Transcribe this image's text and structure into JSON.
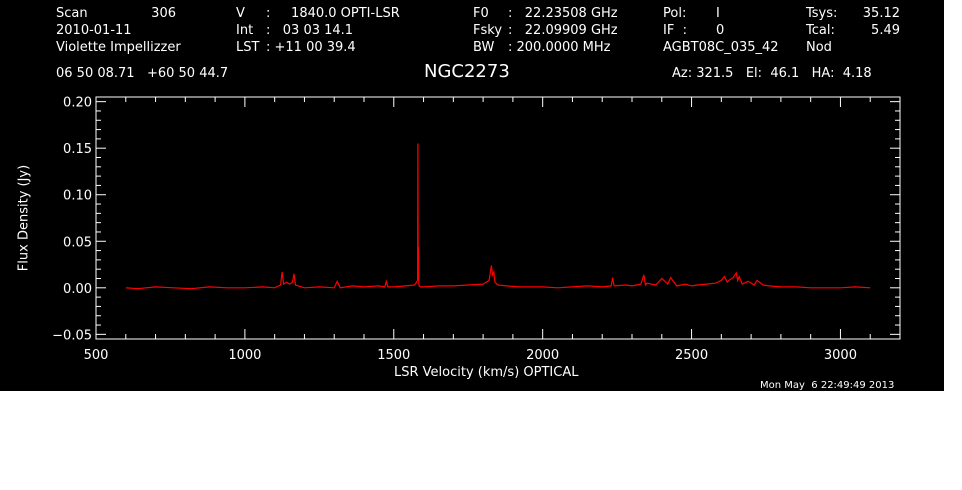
{
  "header": {
    "col1": [
      "Scan",
      "2010-01-11",
      "Violette Impellizzer"
    ],
    "col1_value": "306",
    "col2_label": [
      "V",
      "Int",
      "LST"
    ],
    "col2_value": [
      ":     1840.0 OPTI-LSR",
      ":   03 03 14.1",
      ": +11 00 39.4"
    ],
    "col3_label": [
      "F0",
      "Fsky",
      "BW"
    ],
    "col3_value": [
      ":   22.23508 GHz",
      ":   22.09909 GHz",
      ": 200.0000 MHz"
    ],
    "col4_label": [
      "Pol:",
      "IF  :",
      "AGBT08C_035_42"
    ],
    "col4_value": [
      "I",
      "0",
      ""
    ],
    "col5_label": [
      "Tsys:",
      "Tcal:",
      "Nod"
    ],
    "col5_value": [
      "35.12",
      "5.49",
      ""
    ],
    "coords": "06 50 08.71   +60 50 44.7",
    "source": "NGC2273",
    "azelha": "Az: 321.5   El:  46.1   HA:  4.18"
  },
  "footer": {
    "timestamp": "Mon May  6 22:49:49 2013"
  },
  "colors": {
    "background": "#000000",
    "axes": "#ffffff",
    "trace": "#ff0000"
  },
  "chart_data": {
    "type": "line",
    "xlabel": "LSR Velocity (km/s) OPTICAL",
    "ylabel": "Flux Density (Jy)",
    "xlim": [
      500,
      3200
    ],
    "ylim": [
      -0.055,
      0.205
    ],
    "xticks": [
      500,
      1000,
      1500,
      2000,
      2500,
      3000
    ],
    "xtick_labels": [
      "500",
      "1000",
      "1500",
      "2000",
      "2500",
      "3000"
    ],
    "yticks": [
      -0.05,
      0.0,
      0.05,
      0.1,
      0.15,
      0.2
    ],
    "ytick_labels": [
      "−0.05",
      "0.00",
      "0.05",
      "0.10",
      "0.15",
      "0.20"
    ],
    "series": [
      {
        "x": [
          600,
          640,
          700,
          760,
          820,
          880,
          940,
          1000,
          1060,
          1100,
          1120,
          1125,
          1130,
          1140,
          1150,
          1160,
          1165,
          1170,
          1180,
          1200,
          1250,
          1300,
          1310,
          1320,
          1360,
          1400,
          1450,
          1470,
          1475,
          1480,
          1500,
          1540,
          1570,
          1580,
          1581,
          1582,
          1583,
          1584,
          1585,
          1590,
          1600,
          1650,
          1700,
          1750,
          1800,
          1820,
          1828,
          1832,
          1836,
          1840,
          1850,
          1880,
          1920,
          1960,
          2000,
          2050,
          2100,
          2150,
          2200,
          2230,
          2235,
          2240,
          2280,
          2300,
          2330,
          2340,
          2345,
          2350,
          2380,
          2400,
          2420,
          2430,
          2450,
          2480,
          2500,
          2520,
          2550,
          2580,
          2600,
          2610,
          2620,
          2630,
          2640,
          2650,
          2655,
          2660,
          2670,
          2690,
          2710,
          2720,
          2740,
          2760,
          2800,
          2850,
          2900,
          2950,
          3000,
          3050,
          3100
        ],
        "y": [
          0.0,
          -0.001,
          0.001,
          0.0,
          -0.001,
          0.001,
          0.0,
          0.0,
          0.001,
          0.0,
          0.003,
          0.017,
          0.004,
          0.006,
          0.004,
          0.006,
          0.015,
          0.003,
          0.002,
          0.0,
          0.001,
          0.0,
          0.007,
          0.0,
          0.002,
          0.001,
          0.002,
          0.001,
          0.007,
          0.001,
          0.001,
          0.002,
          0.003,
          0.008,
          0.155,
          0.01,
          0.044,
          0.005,
          0.002,
          0.001,
          0.001,
          0.002,
          0.002,
          0.003,
          0.004,
          0.008,
          0.024,
          0.014,
          0.017,
          0.006,
          0.003,
          0.002,
          0.001,
          0.001,
          0.001,
          0.0,
          0.001,
          0.002,
          0.001,
          0.002,
          0.011,
          0.002,
          0.003,
          0.002,
          0.004,
          0.014,
          0.003,
          0.005,
          0.003,
          0.01,
          0.004,
          0.011,
          0.002,
          0.004,
          0.002,
          0.003,
          0.004,
          0.005,
          0.008,
          0.012,
          0.006,
          0.009,
          0.011,
          0.016,
          0.008,
          0.012,
          0.004,
          0.007,
          0.003,
          0.008,
          0.003,
          0.002,
          0.001,
          0.001,
          0.0,
          0.0,
          0.0,
          0.001,
          0.0
        ]
      }
    ]
  }
}
